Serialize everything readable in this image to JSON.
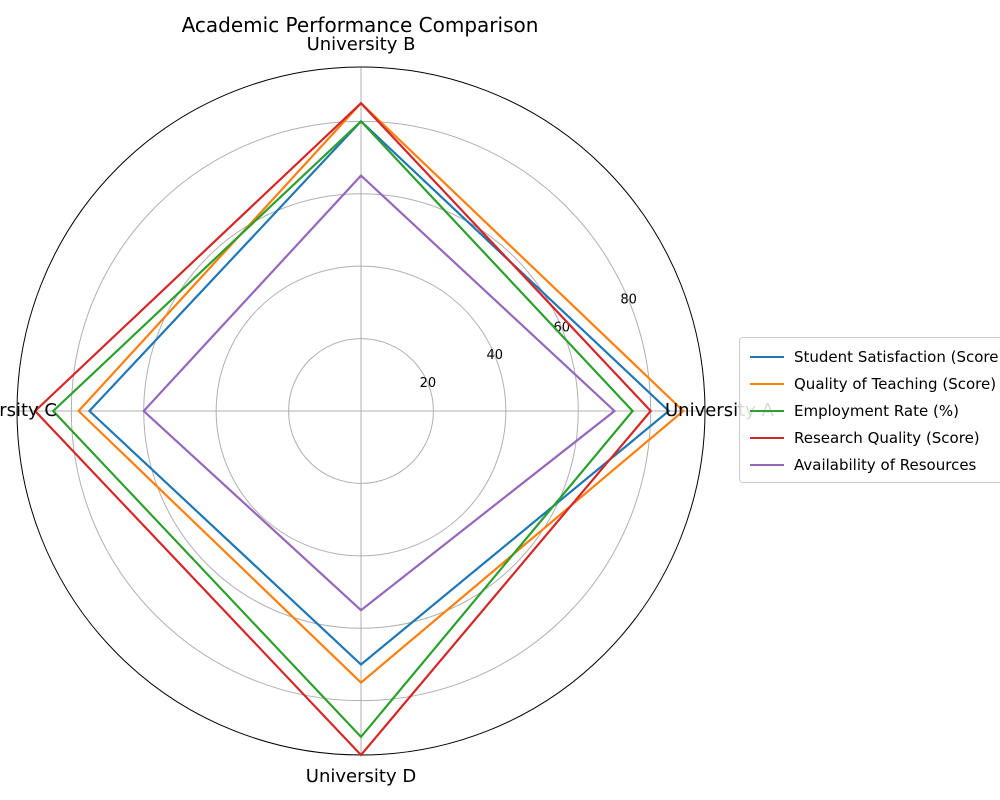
{
  "chart_data": {
    "type": "radar",
    "title": "Academic Performance Comparison",
    "categories": [
      "University A",
      "University B",
      "University C",
      "University D"
    ],
    "rlim": [
      0,
      95
    ],
    "rticks": [
      20,
      40,
      60,
      80
    ],
    "grid": true,
    "legend_position": "right",
    "series": [
      {
        "name": "Student Satisfaction (Score)",
        "color": "#1f77b4",
        "values": [
          85,
          80,
          75,
          70
        ]
      },
      {
        "name": "Quality of Teaching (Score)",
        "color": "#ff7f0e",
        "values": [
          89,
          85,
          78,
          75
        ]
      },
      {
        "name": "Employment Rate (%)",
        "color": "#2ca02c",
        "values": [
          75,
          80,
          85,
          90
        ]
      },
      {
        "name": "Research Quality (Score)",
        "color": "#d62728",
        "values": [
          80,
          85,
          90,
          95
        ]
      },
      {
        "name": "Availability of Resources",
        "color": "#9467bd",
        "values": [
          70,
          65,
          60,
          55
        ]
      }
    ]
  }
}
